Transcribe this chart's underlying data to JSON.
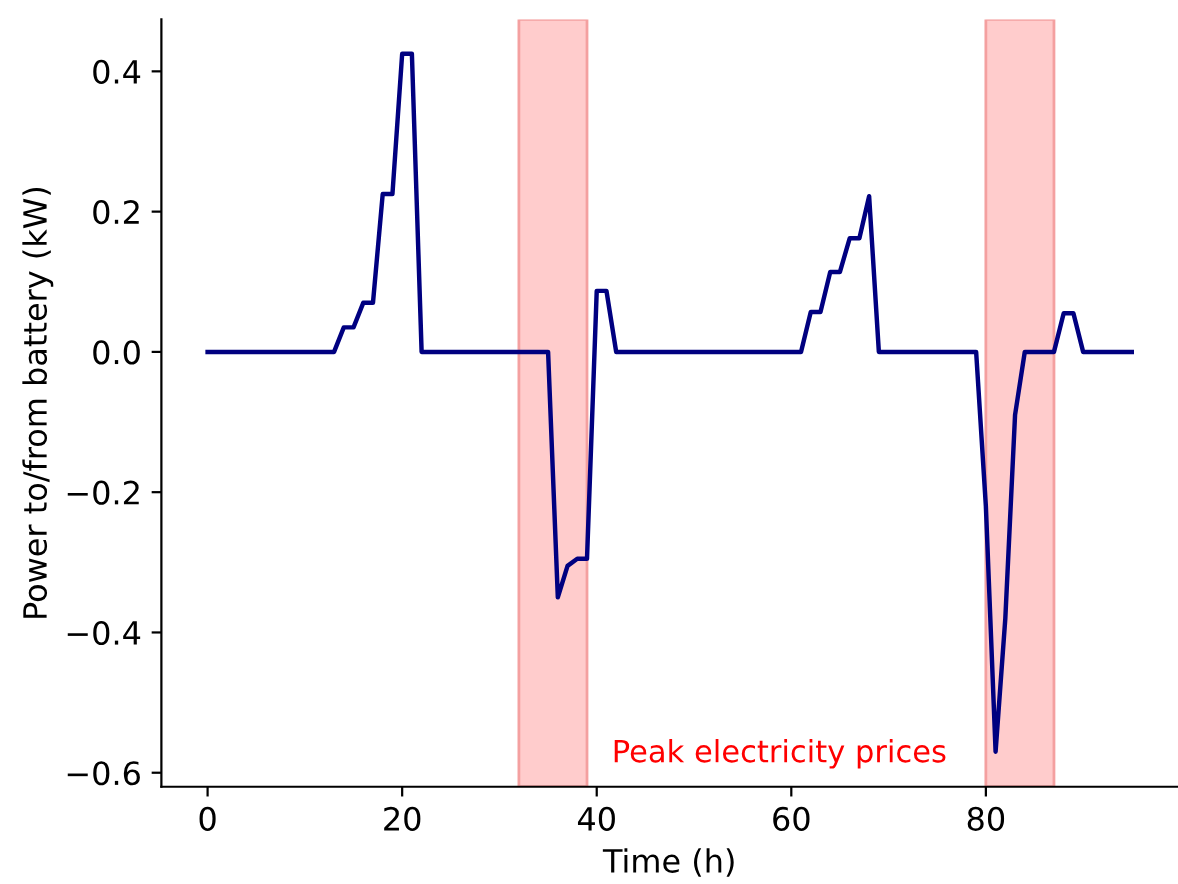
{
  "chart_data": {
    "type": "line",
    "xlabel": "Time (h)",
    "ylabel": "Power to/from battery (kW)",
    "x": [
      0,
      13,
      14,
      15,
      16,
      17,
      18,
      19,
      20,
      21,
      22,
      35,
      36,
      37,
      38,
      39,
      40,
      41,
      42,
      61,
      62,
      63,
      64,
      65,
      66,
      67,
      68,
      69,
      79,
      80,
      81,
      82,
      83,
      84,
      87,
      88,
      89,
      90,
      95
    ],
    "series": [
      {
        "color": "#000080",
        "values": [
          0,
          0,
          0.035,
          0.035,
          0.07,
          0.07,
          0.225,
          0.225,
          0.425,
          0.425,
          0,
          0,
          -0.35,
          -0.305,
          -0.295,
          -0.295,
          0.087,
          0.087,
          0,
          0,
          0.057,
          0.057,
          0.114,
          0.114,
          0.162,
          0.162,
          0.222,
          0,
          0,
          -0.22,
          -0.57,
          -0.38,
          -0.09,
          0,
          0,
          0.055,
          0.055,
          0,
          0
        ]
      }
    ],
    "xlim": [
      -4.75,
      99.75
    ],
    "ylim": [
      -0.62,
      0.474
    ],
    "xticks": [
      0,
      20,
      40,
      60,
      80
    ],
    "yticks": [
      {
        "value": -0.6,
        "label": "−0.6"
      },
      {
        "value": -0.4,
        "label": "−0.4"
      },
      {
        "value": -0.2,
        "label": "−0.2"
      },
      {
        "value": 0.0,
        "label": "0.0"
      },
      {
        "value": 0.2,
        "label": "0.2"
      },
      {
        "value": 0.4,
        "label": "0.4"
      }
    ],
    "bands": [
      {
        "axis": "x",
        "from": 32,
        "to": 39,
        "color": "#ffcccc"
      },
      {
        "axis": "x",
        "from": 80,
        "to": 87,
        "color": "#ffcccc"
      }
    ],
    "annotations": [
      "Peak electricity prices"
    ],
    "grid": false,
    "legend": false,
    "marker": "none",
    "line_style": "solid"
  }
}
